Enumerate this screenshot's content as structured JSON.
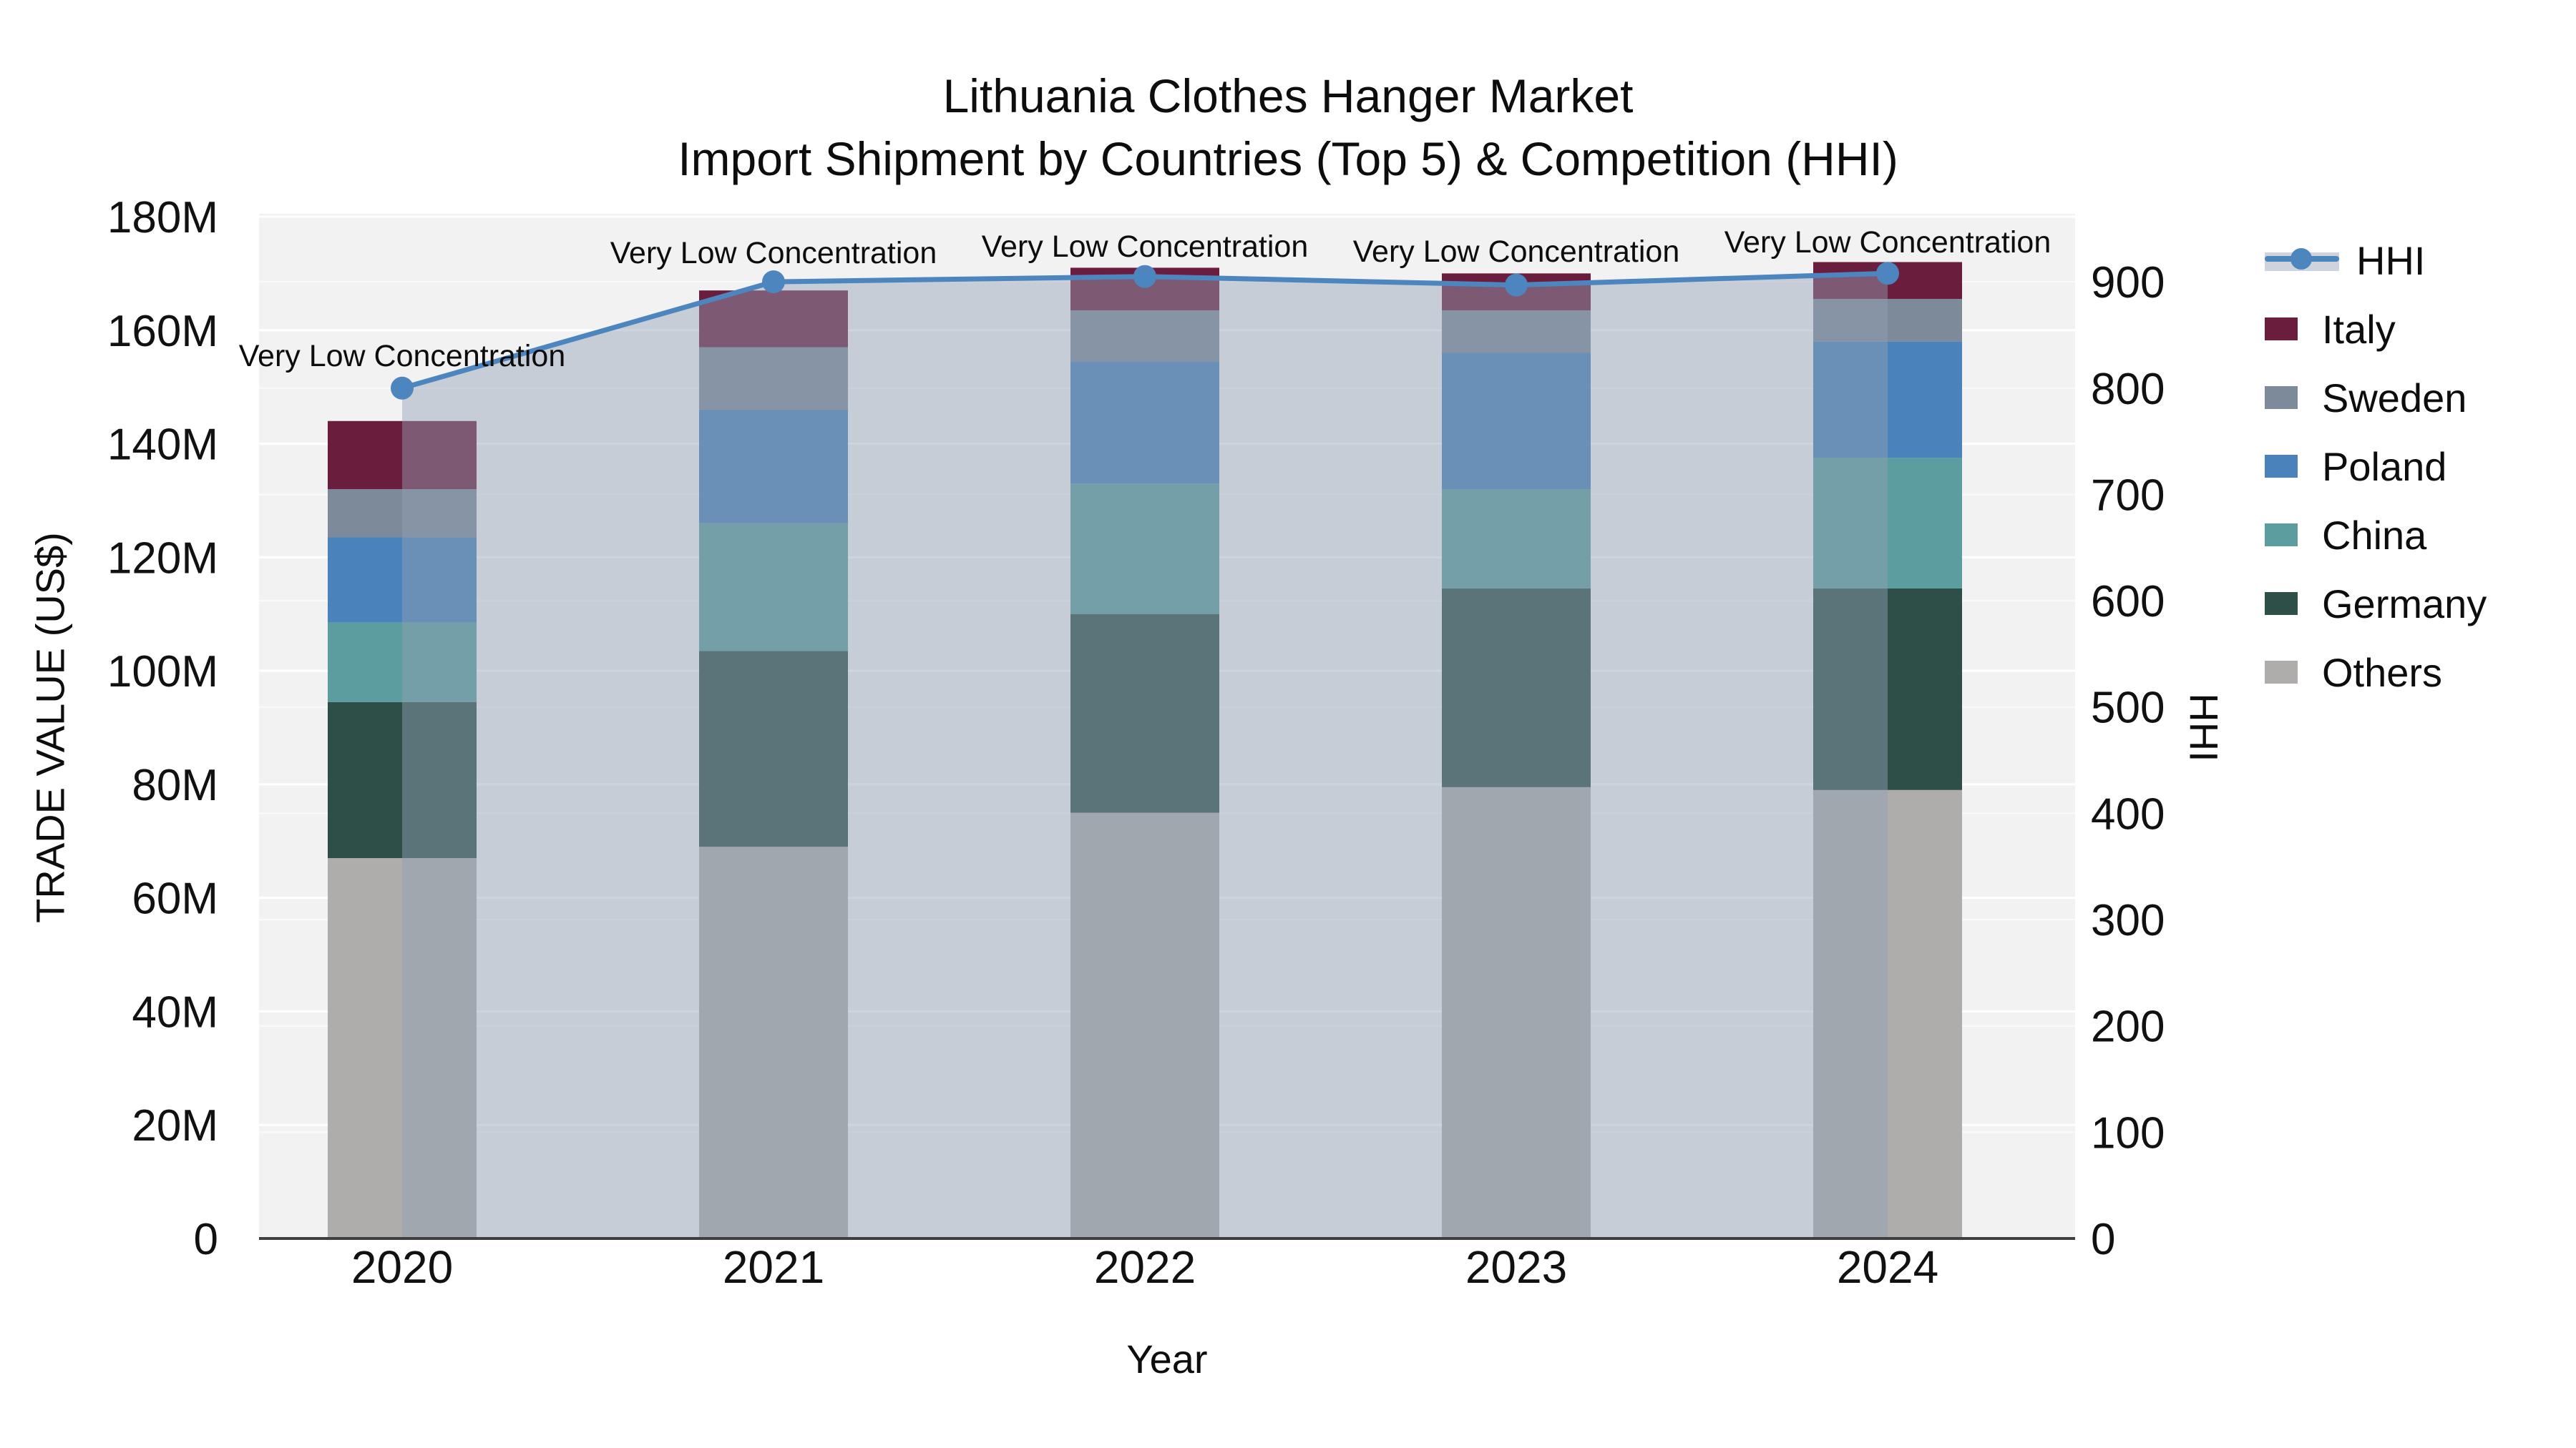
{
  "header": {
    "title": "Lithuania Clothes Hanger Market",
    "subtitle": "Import Shipment by Countries (Top 5) & Competition (HHI)"
  },
  "chart_data": {
    "type": "bar",
    "subtype": "stacked-bar-with-line",
    "title": "Lithuania Clothes Hanger Market",
    "subtitle": "Import Shipment by Countries (Top 5) & Competition (HHI)",
    "xlabel": "Year",
    "ylabel": "TRADE VALUE (US$)",
    "y2label": "HHI",
    "categories": [
      "2020",
      "2021",
      "2022",
      "2023",
      "2024"
    ],
    "bar_value_unit": "million US$",
    "series": [
      {
        "name": "Others",
        "color": "#aeadab",
        "values": [
          67.0,
          69.0,
          75.0,
          79.5,
          79.0
        ]
      },
      {
        "name": "Germany",
        "color": "#2e4f48",
        "values": [
          27.5,
          34.5,
          35.0,
          35.0,
          35.5
        ]
      },
      {
        "name": "China",
        "color": "#5c9ea0",
        "values": [
          14.0,
          22.5,
          23.0,
          17.5,
          23.0
        ]
      },
      {
        "name": "Poland",
        "color": "#4a82bb",
        "values": [
          15.0,
          20.0,
          21.5,
          24.0,
          20.5
        ]
      },
      {
        "name": "Sweden",
        "color": "#7c8a99",
        "values": [
          8.5,
          11.0,
          9.0,
          7.5,
          7.5
        ]
      },
      {
        "name": "Italy",
        "color": "#6b1d3e",
        "values": [
          12.0,
          10.0,
          7.5,
          6.5,
          6.5
        ]
      }
    ],
    "line_series": {
      "name": "HHI",
      "values": [
        800,
        900,
        905,
        897,
        908
      ],
      "color": "#4d85bf",
      "fill_color": "rgba(146,161,181,0.46)",
      "axis": "right"
    },
    "annotations": [
      {
        "text": "Very Low Concentration",
        "category": "2020"
      },
      {
        "text": "Very Low Concentration",
        "category": "2021"
      },
      {
        "text": "Very Low Concentration",
        "category": "2022"
      },
      {
        "text": "Very Low Concentration",
        "category": "2023"
      },
      {
        "text": "Very Low Concentration",
        "category": "2024"
      }
    ],
    "y_left": {
      "min": 0,
      "max": 180.5,
      "tick_values": [
        0,
        20,
        40,
        60,
        80,
        100,
        120,
        140,
        160,
        180
      ],
      "tick_labels": [
        "0",
        "20M",
        "40M",
        "60M",
        "80M",
        "100M",
        "120M",
        "140M",
        "160M",
        "180M"
      ]
    },
    "y_right": {
      "min": 0,
      "max": 964,
      "tick_values": [
        0,
        100,
        200,
        300,
        400,
        500,
        600,
        700,
        800,
        900
      ],
      "tick_labels": [
        "0",
        "100",
        "200",
        "300",
        "400",
        "500",
        "600",
        "700",
        "800",
        "900"
      ]
    },
    "legend_position": "right",
    "grid": true,
    "plot_bg": "#f2f2f3",
    "grid_color": "#ffffff",
    "axisline_color": "#3f3f3f",
    "legend": [
      {
        "label": "HHI",
        "type": "line",
        "color": "#4d85bf",
        "band": "rgba(146,161,181,0.46)"
      },
      {
        "label": "Italy",
        "type": "bar",
        "color": "#6b1d3e"
      },
      {
        "label": "Sweden",
        "type": "bar",
        "color": "#7c8a99"
      },
      {
        "label": "Poland",
        "type": "bar",
        "color": "#4a82bb"
      },
      {
        "label": "China",
        "type": "bar",
        "color": "#5c9ea0"
      },
      {
        "label": "Germany",
        "type": "bar",
        "color": "#2e4f48"
      },
      {
        "label": "Others",
        "type": "bar",
        "color": "#aeadab"
      }
    ]
  }
}
